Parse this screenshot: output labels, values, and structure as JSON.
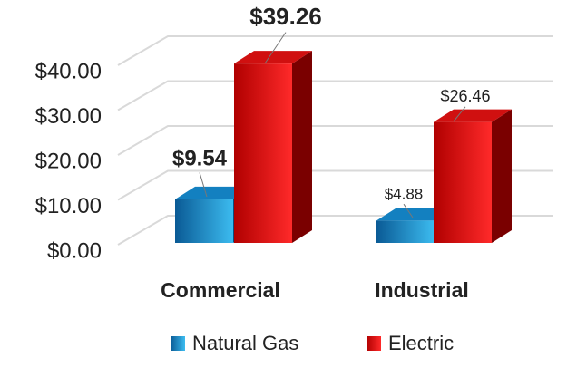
{
  "chart_data": {
    "type": "bar3d",
    "categories": [
      "Commercial",
      "Industrial"
    ],
    "series": [
      {
        "name": "Natural Gas",
        "color": "#1e90d0",
        "values": [
          9.54,
          4.88
        ],
        "value_labels": [
          "$9.54",
          "$4.88"
        ]
      },
      {
        "name": "Electric",
        "color": "#e8141a",
        "values": [
          39.26,
          26.46
        ],
        "value_labels": [
          "$39.26",
          "$26.46"
        ]
      }
    ],
    "ylim": [
      0,
      40
    ],
    "yticks": [
      {
        "value": 0,
        "label": "$0.00"
      },
      {
        "value": 10,
        "label": "$10.00"
      },
      {
        "value": 20,
        "label": "$20.00"
      },
      {
        "value": 30,
        "label": "$30.00"
      },
      {
        "value": 40,
        "label": "$40.00"
      }
    ],
    "grid": true,
    "legend": "bottom"
  }
}
